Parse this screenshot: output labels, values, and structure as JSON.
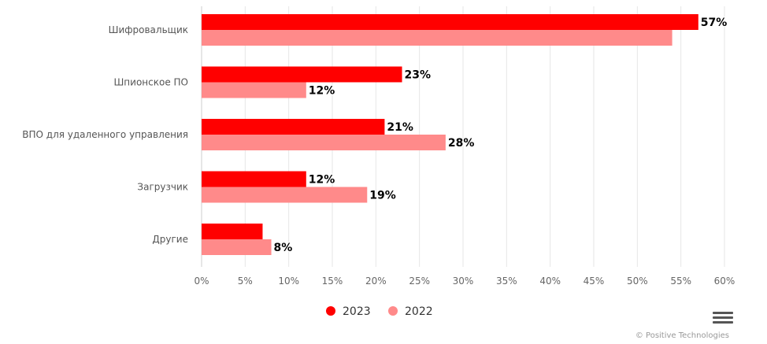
{
  "chart_data": {
    "type": "bar",
    "orientation": "horizontal",
    "categories": [
      "Шифровальщик",
      "Шпионское ПО",
      "ВПО для удаленного управления",
      "Загрузчик",
      "Другие"
    ],
    "series": [
      {
        "name": "2023",
        "color": "#ff0000",
        "values": [
          57,
          23,
          21,
          12,
          7
        ],
        "labels": [
          "57%",
          "23%",
          "21%",
          "12%",
          ""
        ]
      },
      {
        "name": "2022",
        "color": "#ff8a8a",
        "values": [
          54,
          12,
          28,
          19,
          8
        ],
        "labels": [
          "",
          "12%",
          "28%",
          "19%",
          "8%"
        ]
      }
    ],
    "xlim": [
      0,
      60
    ],
    "ticks": [
      "0%",
      "5%",
      "10%",
      "15%",
      "20%",
      "25%",
      "30%",
      "35%",
      "40%",
      "45%",
      "50%",
      "55%",
      "60%"
    ],
    "grid": true,
    "legend_position": "bottom-center"
  },
  "credits": "© Positive Technologies",
  "menu_icon": "hamburger-menu-icon"
}
